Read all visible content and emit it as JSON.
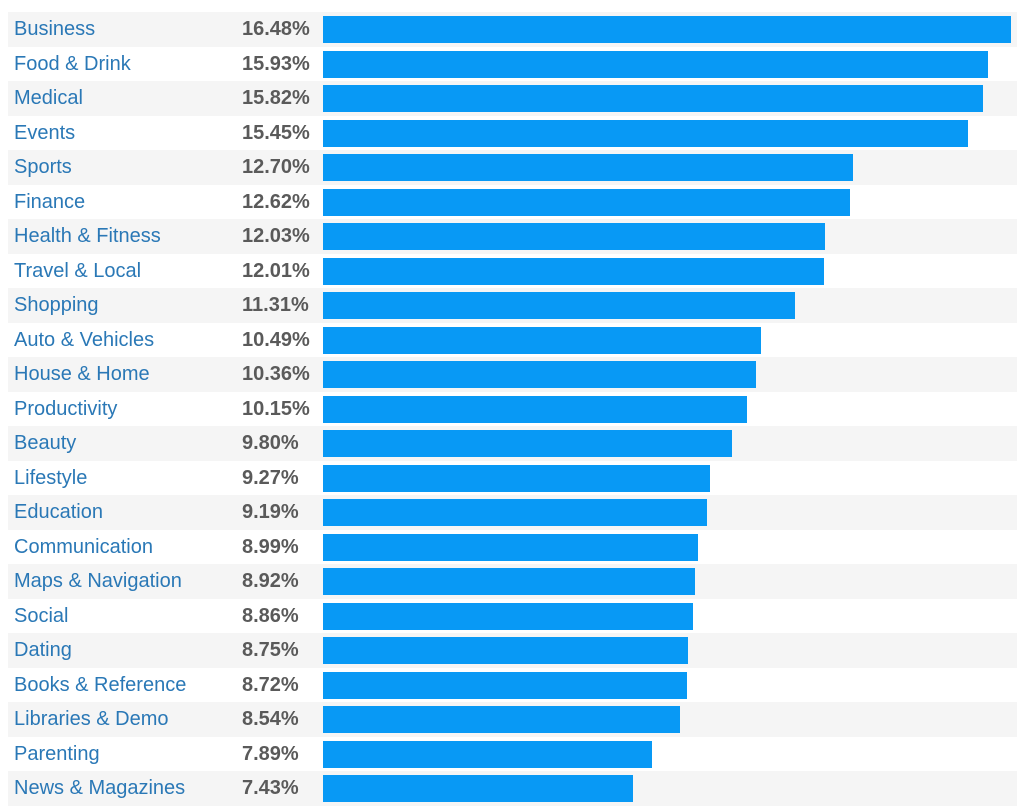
{
  "chart_data": {
    "type": "bar",
    "orientation": "horizontal",
    "categories": [
      "Business",
      "Food & Drink",
      "Medical",
      "Events",
      "Sports",
      "Finance",
      "Health & Fitness",
      "Travel & Local",
      "Shopping",
      "Auto & Vehicles",
      "House & Home",
      "Productivity",
      "Beauty",
      "Lifestyle",
      "Education",
      "Communication",
      "Maps & Navigation",
      "Social",
      "Dating",
      "Books & Reference",
      "Libraries & Demo",
      "Parenting",
      "News & Magazines"
    ],
    "values": [
      16.48,
      15.93,
      15.82,
      15.45,
      12.7,
      12.62,
      12.03,
      12.01,
      11.31,
      10.49,
      10.36,
      10.15,
      9.8,
      9.27,
      9.19,
      8.99,
      8.92,
      8.86,
      8.75,
      8.72,
      8.54,
      7.89,
      7.43
    ],
    "value_labels": [
      "16.48%",
      "15.93%",
      "15.82%",
      "15.45%",
      "12.70%",
      "12.62%",
      "12.03%",
      "12.01%",
      "11.31%",
      "10.49%",
      "10.36%",
      "10.15%",
      "9.80%",
      "9.27%",
      "9.19%",
      "8.99%",
      "8.92%",
      "8.86%",
      "8.75%",
      "8.72%",
      "8.54%",
      "7.89%",
      "7.43%"
    ],
    "xlim": [
      0,
      16.48
    ],
    "grid": false,
    "bar_color": "#0899f5",
    "label_color": "#2a78b6",
    "value_color": "#5a5a5a",
    "stripe_color": "#f5f5f5"
  }
}
